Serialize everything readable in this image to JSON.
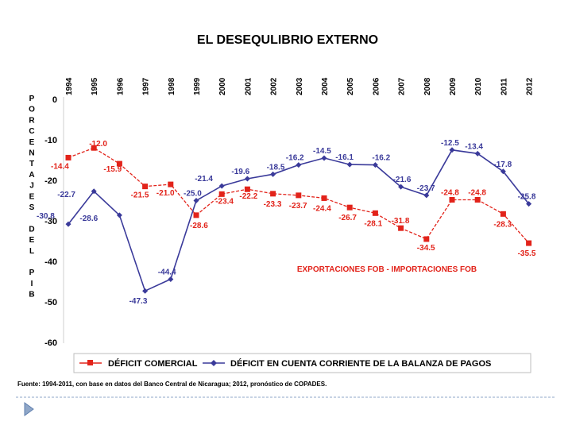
{
  "chart_data": {
    "type": "line",
    "title": "EL DESEQULIBRIO EXTERNO",
    "ylabel_letters": [
      "P",
      "O",
      "R",
      "C",
      "E",
      "N",
      "T",
      "A",
      "J",
      "E",
      "S",
      "",
      "D",
      "E",
      "L",
      "",
      "P",
      "I",
      "B"
    ],
    "ylim": [
      -60,
      0
    ],
    "yticks": [
      0,
      -10,
      -20,
      -30,
      -40,
      -50,
      -60
    ],
    "categories": [
      "1994",
      "1995",
      "1996",
      "1997",
      "1998",
      "1999",
      "2000",
      "2001",
      "2002",
      "2003",
      "2004",
      "2005",
      "2006",
      "2007",
      "2008",
      "2009",
      "2010",
      "2011",
      "2012"
    ],
    "series": [
      {
        "name": "DÉFICIT COMERCIAL",
        "color": "#e2231a",
        "marker": "square",
        "values": [
          -14.4,
          -12.0,
          -15.9,
          -21.5,
          -21.0,
          -28.6,
          -23.4,
          -22.2,
          -23.3,
          -23.7,
          -24.4,
          -26.7,
          -28.1,
          -31.8,
          -34.5,
          -24.8,
          -24.8,
          -28.3,
          -35.5
        ],
        "value_labels": [
          "-14.4",
          "-12.0",
          "-15.9",
          "-21.5",
          "-21.0",
          "-28.6",
          "-23.4",
          "-22.2",
          "-23.3",
          "-23.7",
          "-24.4",
          "-26.7",
          "-28.1",
          "-31.8",
          "-34.5",
          "-24.8",
          "-24.8",
          "-28.3",
          "-35.5"
        ]
      },
      {
        "name": "DÉFICIT EN CUENTA CORRIENTE DE LA BALANZA DE PAGOS",
        "color": "#3a3a9a",
        "marker": "diamond",
        "values": [
          -30.8,
          -22.7,
          -28.6,
          -47.3,
          -44.4,
          -25.0,
          -21.4,
          -19.6,
          -18.5,
          -16.2,
          -14.5,
          -16.1,
          -16.2,
          -21.6,
          -23.7,
          -12.5,
          -13.4,
          -17.8,
          -25.8
        ],
        "value_labels": [
          "-30.8",
          "-22.7",
          "-28.6",
          "-47.3",
          "-44.4",
          "-25.0",
          "-21.4",
          "-19.6",
          "-18.5",
          "-16.2",
          "-14.5",
          "-16.1",
          "-16.2",
          "-21.6",
          "-23.7",
          "-12.5",
          "-13.4",
          "-17.8",
          "-25.8"
        ]
      }
    ],
    "annotation": "EXPORTACIONES FOB - IMPORTACIONES FOB",
    "legend": [
      "DÉFICIT COMERCIAL",
      "DÉFICIT EN CUENTA CORRIENTE DE LA BALANZA DE PAGOS"
    ],
    "grid": false
  },
  "source_note": "Fuente: 1994-2011, con base en datos del Banco Central de Nicaragua; 2012, pronóstico de COPADES.",
  "icons": {
    "slide_marker": "triangle-bullet-icon"
  }
}
